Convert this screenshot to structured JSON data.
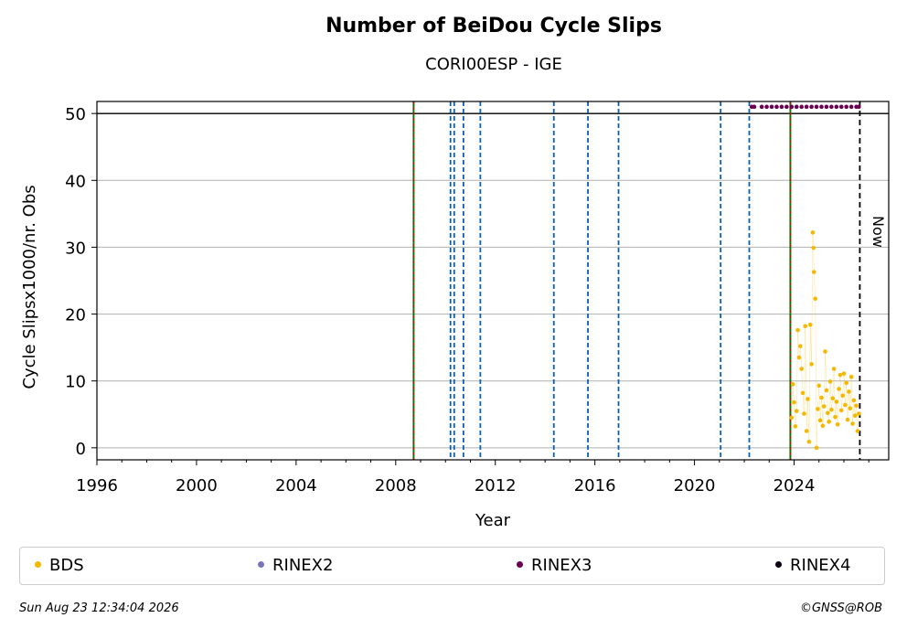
{
  "chart_data": {
    "type": "scatter",
    "title": "Number of BeiDou Cycle Slips",
    "subtitle": "CORI00ESP - IGE",
    "xlabel": "Year",
    "ylabel": "Cycle Slipsx1000/nr. Obs",
    "xlim": [
      1996,
      2027.8
    ],
    "ylim": [
      -1.8,
      51.8
    ],
    "x_ticks": [
      "1996",
      "2000",
      "2004",
      "2008",
      "2012",
      "2016",
      "2020",
      "2024"
    ],
    "y_ticks": [
      "0",
      "10",
      "20",
      "30",
      "40",
      "50"
    ],
    "grid": "horizontal",
    "reference_line_y": 50,
    "equipment_change_lines": [
      2008.72,
      2023.85
    ],
    "config_change_lines": [
      2010.2,
      2010.35,
      2010.72,
      2011.4,
      2014.35,
      2015.72,
      2016.95,
      2021.05,
      2022.2
    ],
    "now_line": {
      "x": 2026.64,
      "label": "Now"
    },
    "series": [
      {
        "name": "BDS",
        "color": "#f5b800",
        "values": [
          [
            2023.9,
            4.5
          ],
          [
            2023.95,
            9.5
          ],
          [
            2024.0,
            6.8
          ],
          [
            2024.05,
            3.2
          ],
          [
            2024.1,
            5.5
          ],
          [
            2024.15,
            17.6
          ],
          [
            2024.2,
            13.5
          ],
          [
            2024.25,
            15.2
          ],
          [
            2024.3,
            11.8
          ],
          [
            2024.35,
            8.2
          ],
          [
            2024.4,
            5.1
          ],
          [
            2024.45,
            18.2
          ],
          [
            2024.5,
            2.5
          ],
          [
            2024.55,
            7.3
          ],
          [
            2024.6,
            0.9
          ],
          [
            2024.65,
            18.4
          ],
          [
            2024.7,
            12.5
          ],
          [
            2024.75,
            32.2
          ],
          [
            2024.78,
            29.9
          ],
          [
            2024.8,
            26.3
          ],
          [
            2024.85,
            22.3
          ],
          [
            2024.9,
            0.0
          ],
          [
            2024.95,
            5.8
          ],
          [
            2025.0,
            9.3
          ],
          [
            2025.05,
            4.1
          ],
          [
            2025.1,
            7.5
          ],
          [
            2025.15,
            3.3
          ],
          [
            2025.2,
            6.2
          ],
          [
            2025.25,
            14.4
          ],
          [
            2025.3,
            8.6
          ],
          [
            2025.35,
            5.2
          ],
          [
            2025.4,
            3.9
          ],
          [
            2025.45,
            9.9
          ],
          [
            2025.5,
            5.7
          ],
          [
            2025.55,
            7.4
          ],
          [
            2025.6,
            11.8
          ],
          [
            2025.65,
            4.6
          ],
          [
            2025.7,
            6.9
          ],
          [
            2025.75,
            3.5
          ],
          [
            2025.8,
            8.8
          ],
          [
            2025.85,
            10.9
          ],
          [
            2025.9,
            5.6
          ],
          [
            2025.95,
            7.8
          ],
          [
            2026.0,
            11.1
          ],
          [
            2026.05,
            6.4
          ],
          [
            2026.1,
            9.7
          ],
          [
            2026.15,
            4.2
          ],
          [
            2026.2,
            8.4
          ],
          [
            2026.25,
            5.9
          ],
          [
            2026.3,
            10.6
          ],
          [
            2026.35,
            3.6
          ],
          [
            2026.4,
            7.1
          ],
          [
            2026.45,
            4.8
          ],
          [
            2026.5,
            6.3
          ],
          [
            2026.55,
            2.5
          ],
          [
            2026.6,
            5.1
          ]
        ]
      },
      {
        "name": "RINEX2",
        "color": "#7b74b8",
        "values": []
      },
      {
        "name": "RINEX3",
        "color": "#6a004f",
        "values": [
          [
            2022.3,
            51
          ],
          [
            2022.4,
            51
          ],
          [
            2022.7,
            51
          ],
          [
            2022.9,
            51
          ],
          [
            2023.1,
            51
          ],
          [
            2023.3,
            51
          ],
          [
            2023.5,
            51
          ],
          [
            2023.7,
            51
          ],
          [
            2023.9,
            51
          ],
          [
            2024.1,
            51
          ],
          [
            2024.3,
            51
          ],
          [
            2024.5,
            51
          ],
          [
            2024.7,
            51
          ],
          [
            2024.9,
            51
          ],
          [
            2025.1,
            51
          ],
          [
            2025.3,
            51
          ],
          [
            2025.5,
            51
          ],
          [
            2025.7,
            51
          ],
          [
            2025.9,
            51
          ],
          [
            2026.1,
            51
          ],
          [
            2026.3,
            51
          ],
          [
            2026.5,
            51
          ],
          [
            2026.6,
            51
          ]
        ]
      },
      {
        "name": "RINEX4",
        "color": "#0d0015",
        "values": []
      }
    ]
  },
  "legend": [
    {
      "label": "BDS",
      "color": "#f5b800"
    },
    {
      "label": "RINEX2",
      "color": "#7b74b8"
    },
    {
      "label": "RINEX3",
      "color": "#6a004f"
    },
    {
      "label": "RINEX4",
      "color": "#0d0015"
    }
  ],
  "footer": {
    "timestamp": "Sun Aug 23 12:34:04 2026",
    "credit": "©GNSS@ROB"
  }
}
